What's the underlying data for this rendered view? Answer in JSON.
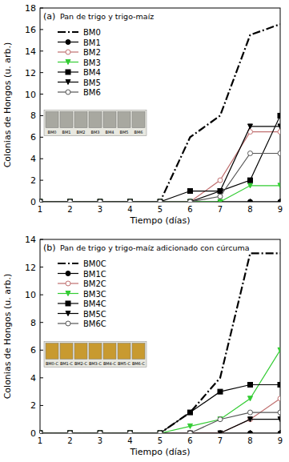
{
  "chart_data": [
    {
      "type": "line",
      "subtitle": "(a)",
      "title": "Pan de trigo y trigo-maíz",
      "x_label": "Tiempo (días)",
      "y_label": "Colonias de Hongos (u. arb.)",
      "x": [
        1,
        2,
        3,
        4,
        5,
        6,
        7,
        8,
        9
      ],
      "xlim": [
        1,
        9
      ],
      "xticks": [
        1,
        2,
        3,
        4,
        5,
        6,
        7,
        8,
        9
      ],
      "ylim": [
        0,
        18
      ],
      "yticks": [
        0,
        2,
        4,
        6,
        8,
        10,
        12,
        14,
        16,
        18
      ],
      "legend": "upper-left",
      "annotations": [
        "BM0",
        "BM1",
        "BM2",
        "BM3",
        "BM4",
        "BM5",
        "BM6"
      ],
      "series": [
        {
          "name": "BM0",
          "color": "#000000",
          "marker": "none",
          "line_style": "dashdot",
          "values": [
            0,
            0,
            0,
            0,
            0,
            6,
            8,
            15.5,
            16.5
          ]
        },
        {
          "name": "BM1",
          "color": "#000000",
          "marker": "circle",
          "line_style": "solid",
          "values": [
            0,
            0,
            0,
            0,
            0,
            0,
            0,
            0,
            0
          ]
        },
        {
          "name": "BM2",
          "color": "#c07070",
          "marker": "circle-open",
          "line_style": "solid",
          "values": [
            0,
            0,
            0,
            0,
            0,
            0,
            2,
            6.5,
            6.5
          ]
        },
        {
          "name": "BM3",
          "color": "#33cc33",
          "marker": "triangle-down",
          "line_style": "solid",
          "values": [
            0,
            0,
            0,
            0,
            0,
            0,
            0,
            1.5,
            1.5
          ]
        },
        {
          "name": "BM4",
          "color": "#000000",
          "marker": "square",
          "line_style": "solid",
          "values": [
            0,
            0,
            0,
            0,
            0,
            1,
            1,
            2,
            8
          ]
        },
        {
          "name": "BM5",
          "color": "#000000",
          "marker": "triangle-down",
          "line_style": "solid",
          "values": [
            0,
            0,
            0,
            0,
            0,
            0,
            1,
            7,
            7
          ]
        },
        {
          "name": "BM6",
          "color": "#555555",
          "marker": "circle-open",
          "line_style": "solid",
          "values": [
            0,
            0,
            0,
            0,
            0,
            0,
            0.5,
            4.5,
            4.5
          ]
        }
      ]
    },
    {
      "type": "line",
      "subtitle": "(b)",
      "title": "Pan de trigo y trigo-maíz adicionado con cúrcuma",
      "x_label": "Tiempo (días)",
      "y_label": "Colonias de Hongos (u. arb.)",
      "x": [
        1,
        2,
        3,
        4,
        5,
        6,
        7,
        8,
        9
      ],
      "xlim": [
        1,
        9
      ],
      "xticks": [
        1,
        2,
        3,
        4,
        5,
        6,
        7,
        8,
        9
      ],
      "ylim": [
        0,
        14
      ],
      "yticks": [
        0,
        2,
        4,
        6,
        8,
        10,
        12,
        14
      ],
      "legend": "upper-left",
      "annotations": [
        "BM0-C",
        "BM1-C",
        "BM2-C",
        "BM3-C",
        "BM4-C",
        "BM5-C",
        "BM6-C"
      ],
      "series": [
        {
          "name": "BM0C",
          "color": "#000000",
          "marker": "none",
          "line_style": "dashdot",
          "values": [
            0,
            0,
            0,
            0,
            0,
            1.5,
            4,
            13,
            13
          ]
        },
        {
          "name": "BM1C",
          "color": "#000000",
          "marker": "circle",
          "line_style": "solid",
          "values": [
            0,
            0,
            0,
            0,
            0,
            0,
            0,
            0,
            0
          ]
        },
        {
          "name": "BM2C",
          "color": "#c07070",
          "marker": "circle-open",
          "line_style": "solid",
          "values": [
            0,
            0,
            0,
            0,
            0,
            0,
            0,
            1,
            2.5
          ]
        },
        {
          "name": "BM3C",
          "color": "#33cc33",
          "marker": "triangle-down",
          "line_style": "solid",
          "values": [
            0,
            0,
            0,
            0,
            0,
            0.5,
            1,
            2.5,
            6
          ]
        },
        {
          "name": "BM4C",
          "color": "#000000",
          "marker": "square",
          "line_style": "solid",
          "values": [
            0,
            0,
            0,
            0,
            0,
            1.5,
            3,
            3.5,
            3.5
          ]
        },
        {
          "name": "BM5C",
          "color": "#000000",
          "marker": "triangle-down",
          "line_style": "solid",
          "values": [
            0,
            0,
            0,
            0,
            0,
            0,
            0,
            1,
            1
          ]
        },
        {
          "name": "BM6C",
          "color": "#555555",
          "marker": "circle-open",
          "line_style": "solid",
          "values": [
            0,
            0,
            0,
            0,
            0,
            0,
            1,
            1.5,
            1.5
          ]
        }
      ]
    }
  ]
}
